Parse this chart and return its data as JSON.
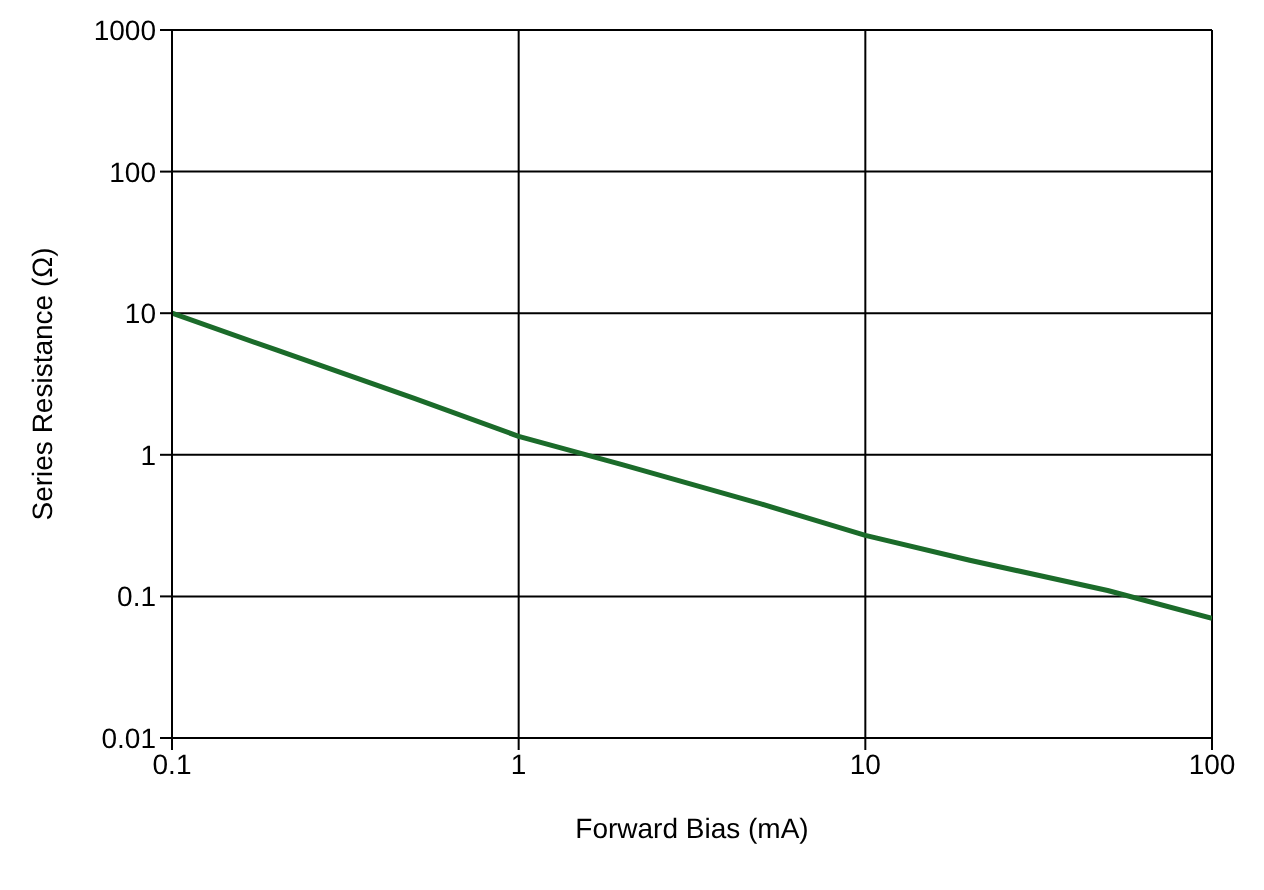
{
  "chart_data": {
    "type": "line",
    "xlabel": "Forward Bias (mA)",
    "ylabel": "Series Resistance (Ω)",
    "log": "xy",
    "grid": true,
    "marker": "none",
    "line_style": "solid",
    "x": [
      0.1,
      0.2,
      0.5,
      1,
      2,
      5,
      10,
      20,
      50,
      100
    ],
    "series": [
      {
        "color": "#1b6b2a",
        "values": [
          10,
          5.5,
          2.5,
          1.35,
          0.85,
          0.45,
          0.27,
          0.18,
          0.11,
          0.07
        ]
      }
    ],
    "xlim": [
      0.1,
      100
    ],
    "xticks": [
      0.1,
      1,
      10,
      100
    ],
    "ylim": [
      0.01,
      1000
    ],
    "yticks": [
      0.01,
      0.1,
      1,
      10,
      100,
      1000
    ]
  }
}
